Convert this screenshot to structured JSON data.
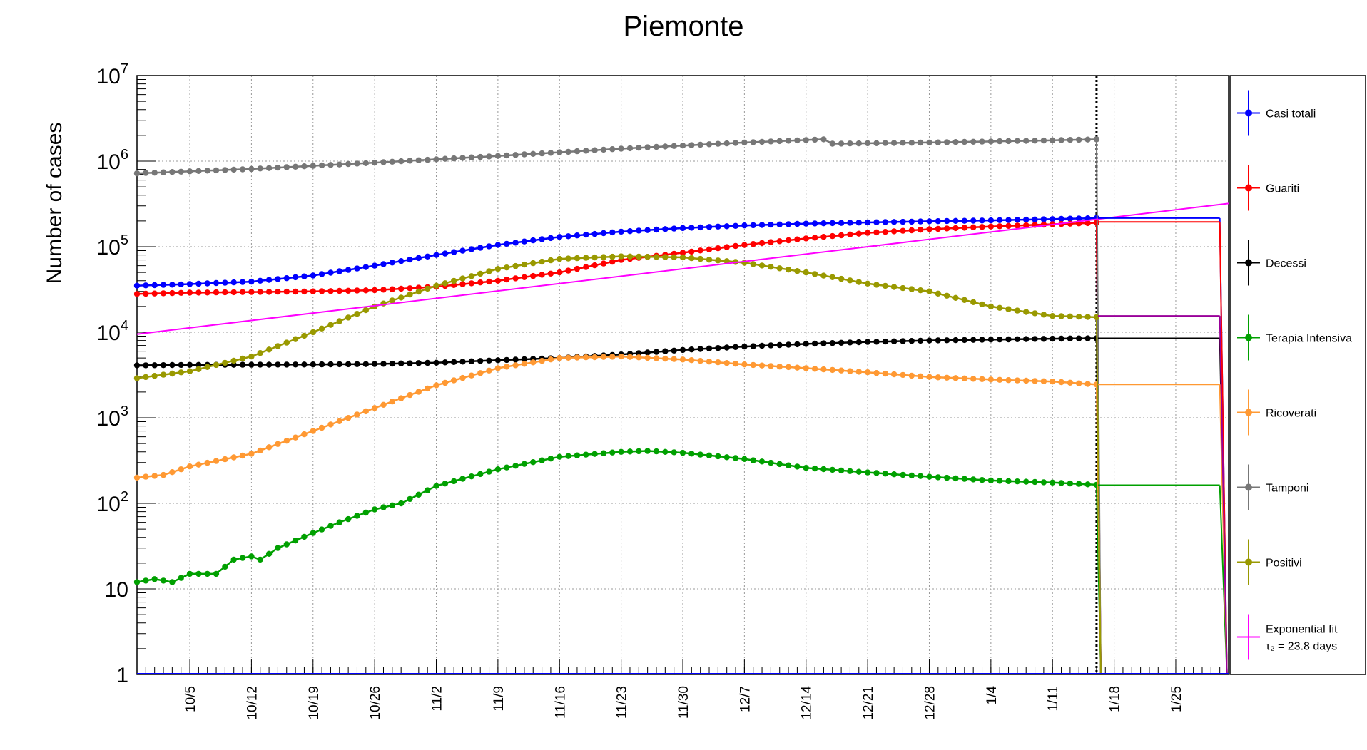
{
  "chart_data": {
    "type": "line",
    "title": "Piemonte",
    "xlabel": "",
    "ylabel": "Number of cases",
    "yscale": "log",
    "ylim": [
      1,
      10000000
    ],
    "xlim": [
      "2020-09-29",
      "2021-01-31"
    ],
    "grid": true,
    "legend_placement": "right",
    "x_ticks": [
      "10/5",
      "10/12",
      "10/19",
      "10/26",
      "11/2",
      "11/9",
      "11/16",
      "11/23",
      "11/30",
      "12/7",
      "12/14",
      "12/21",
      "12/28",
      "1/4",
      "1/11",
      "1/18",
      "1/25"
    ],
    "x_tick_dates": [
      "2020-10-05",
      "2020-10-12",
      "2020-10-19",
      "2020-10-26",
      "2020-11-02",
      "2020-11-09",
      "2020-11-16",
      "2020-11-23",
      "2020-11-30",
      "2020-12-07",
      "2020-12-14",
      "2020-12-21",
      "2020-12-28",
      "2021-01-04",
      "2021-01-11",
      "2021-01-18",
      "2021-01-25"
    ],
    "y_tick_labels": [
      {
        "value": 1,
        "base": "1",
        "exp": ""
      },
      {
        "value": 10,
        "base": "10",
        "exp": ""
      },
      {
        "value": 100,
        "base": "10",
        "exp": "2"
      },
      {
        "value": 1000,
        "base": "10",
        "exp": "3"
      },
      {
        "value": 10000,
        "base": "10",
        "exp": "4"
      },
      {
        "value": 100000,
        "base": "10",
        "exp": "5"
      },
      {
        "value": 1000000,
        "base": "10",
        "exp": "6"
      },
      {
        "value": 10000000,
        "base": "10",
        "exp": "7"
      }
    ],
    "marker_line": "2021-01-16",
    "series": [
      {
        "name": "Casi totali",
        "color": "#0000ff",
        "points": [
          [
            "2020-09-29",
            35000
          ],
          [
            "2020-10-05",
            36500
          ],
          [
            "2020-10-12",
            39000
          ],
          [
            "2020-10-19",
            46000
          ],
          [
            "2020-10-26",
            60000
          ],
          [
            "2020-11-02",
            80000
          ],
          [
            "2020-11-09",
            105000
          ],
          [
            "2020-11-16",
            130000
          ],
          [
            "2020-11-23",
            150000
          ],
          [
            "2020-11-30",
            165000
          ],
          [
            "2020-12-07",
            177000
          ],
          [
            "2020-12-14",
            186000
          ],
          [
            "2020-12-21",
            192000
          ],
          [
            "2020-12-28",
            198000
          ],
          [
            "2021-01-04",
            203000
          ],
          [
            "2021-01-11",
            210000
          ],
          [
            "2021-01-16",
            216000
          ]
        ]
      },
      {
        "name": "Guariti",
        "color": "#ff0000",
        "points": [
          [
            "2020-09-29",
            28000
          ],
          [
            "2020-10-05",
            29000
          ],
          [
            "2020-10-12",
            29500
          ],
          [
            "2020-10-19",
            30000
          ],
          [
            "2020-10-26",
            31000
          ],
          [
            "2020-11-02",
            34000
          ],
          [
            "2020-11-09",
            40000
          ],
          [
            "2020-11-16",
            50000
          ],
          [
            "2020-11-23",
            70000
          ],
          [
            "2020-11-30",
            85000
          ],
          [
            "2020-12-07",
            105000
          ],
          [
            "2020-12-14",
            125000
          ],
          [
            "2020-12-21",
            145000
          ],
          [
            "2020-12-28",
            160000
          ],
          [
            "2021-01-04",
            172000
          ],
          [
            "2021-01-11",
            183000
          ],
          [
            "2021-01-16",
            190000
          ]
        ]
      },
      {
        "name": "Decessi",
        "color": "#000000",
        "points": [
          [
            "2020-09-29",
            4100
          ],
          [
            "2020-10-05",
            4150
          ],
          [
            "2020-10-12",
            4170
          ],
          [
            "2020-10-19",
            4200
          ],
          [
            "2020-10-26",
            4250
          ],
          [
            "2020-11-02",
            4400
          ],
          [
            "2020-11-09",
            4700
          ],
          [
            "2020-11-16",
            5000
          ],
          [
            "2020-11-23",
            5500
          ],
          [
            "2020-11-30",
            6200
          ],
          [
            "2020-12-07",
            6800
          ],
          [
            "2020-12-14",
            7300
          ],
          [
            "2020-12-21",
            7700
          ],
          [
            "2020-12-28",
            8000
          ],
          [
            "2021-01-04",
            8200
          ],
          [
            "2021-01-11",
            8400
          ],
          [
            "2021-01-16",
            8500
          ]
        ]
      },
      {
        "name": "Terapia Intensiva",
        "color": "#00a000",
        "points": [
          [
            "2020-09-29",
            12
          ],
          [
            "2020-10-01",
            13
          ],
          [
            "2020-10-03",
            12
          ],
          [
            "2020-10-05",
            15
          ],
          [
            "2020-10-08",
            15
          ],
          [
            "2020-10-10",
            22
          ],
          [
            "2020-10-12",
            24
          ],
          [
            "2020-10-13",
            22
          ],
          [
            "2020-10-15",
            30
          ],
          [
            "2020-10-19",
            45
          ],
          [
            "2020-10-22",
            60
          ],
          [
            "2020-10-26",
            85
          ],
          [
            "2020-10-29",
            100
          ],
          [
            "2020-11-02",
            160
          ],
          [
            "2020-11-09",
            250
          ],
          [
            "2020-11-16",
            350
          ],
          [
            "2020-11-23",
            400
          ],
          [
            "2020-11-26",
            410
          ],
          [
            "2020-11-30",
            390
          ],
          [
            "2020-12-07",
            330
          ],
          [
            "2020-12-14",
            260
          ],
          [
            "2020-12-21",
            230
          ],
          [
            "2020-12-28",
            205
          ],
          [
            "2021-01-04",
            185
          ],
          [
            "2021-01-11",
            175
          ],
          [
            "2021-01-16",
            165
          ]
        ]
      },
      {
        "name": "Ricoverati",
        "color": "#ff9933",
        "points": [
          [
            "2020-09-29",
            200
          ],
          [
            "2020-10-02",
            215
          ],
          [
            "2020-10-05",
            270
          ],
          [
            "2020-10-12",
            380
          ],
          [
            "2020-10-19",
            700
          ],
          [
            "2020-10-26",
            1300
          ],
          [
            "2020-11-02",
            2400
          ],
          [
            "2020-11-09",
            3800
          ],
          [
            "2020-11-16",
            5000
          ],
          [
            "2020-11-23",
            5200
          ],
          [
            "2020-11-30",
            4800
          ],
          [
            "2020-12-07",
            4200
          ],
          [
            "2020-12-14",
            3800
          ],
          [
            "2020-12-21",
            3400
          ],
          [
            "2020-12-28",
            3000
          ],
          [
            "2021-01-04",
            2800
          ],
          [
            "2021-01-11",
            2650
          ],
          [
            "2021-01-16",
            2450
          ]
        ]
      },
      {
        "name": "Tamponi",
        "color": "#777777",
        "points": [
          [
            "2020-09-29",
            720000
          ],
          [
            "2020-10-12",
            810000
          ],
          [
            "2020-10-26",
            960000
          ],
          [
            "2020-11-09",
            1150000
          ],
          [
            "2020-11-23",
            1400000
          ],
          [
            "2020-12-07",
            1650000
          ],
          [
            "2020-12-16",
            1800000
          ],
          [
            "2020-12-17",
            1600000
          ],
          [
            "2020-12-28",
            1650000
          ],
          [
            "2021-01-11",
            1750000
          ],
          [
            "2021-01-16",
            1800000
          ]
        ]
      },
      {
        "name": "Positivi",
        "color": "#999900",
        "points": [
          [
            "2020-09-29",
            2900
          ],
          [
            "2020-10-05",
            3500
          ],
          [
            "2020-10-12",
            5200
          ],
          [
            "2020-10-19",
            10000
          ],
          [
            "2020-10-26",
            20000
          ],
          [
            "2020-11-02",
            35000
          ],
          [
            "2020-11-09",
            55000
          ],
          [
            "2020-11-16",
            72000
          ],
          [
            "2020-11-23",
            77000
          ],
          [
            "2020-11-30",
            75000
          ],
          [
            "2020-12-07",
            65000
          ],
          [
            "2020-12-14",
            50000
          ],
          [
            "2020-12-21",
            37000
          ],
          [
            "2020-12-28",
            30000
          ],
          [
            "2021-01-04",
            20000
          ],
          [
            "2021-01-11",
            15500
          ],
          [
            "2021-01-16",
            15000
          ]
        ]
      },
      {
        "name": "Exponential fit",
        "name_line2": "τ₂ = 23.8 days",
        "color": "#ff00ff",
        "points": [
          [
            "2020-09-29",
            9500
          ],
          [
            "2021-01-31",
            320000
          ]
        ]
      }
    ],
    "projections": [
      {
        "name": "Casi totali",
        "color": "#0000ff",
        "value": 216000
      },
      {
        "name": "Guariti",
        "color": "#ff0000",
        "value": 195000
      },
      {
        "name": "Decessi",
        "color": "#000000",
        "value": 8500
      },
      {
        "name": "Terapia Intensiva",
        "color": "#00a000",
        "value": 163
      },
      {
        "name": "Ricoverati",
        "color": "#ff9933",
        "value": 2450
      },
      {
        "name": "Positivi",
        "color": "#990099",
        "value": 15500
      }
    ]
  }
}
